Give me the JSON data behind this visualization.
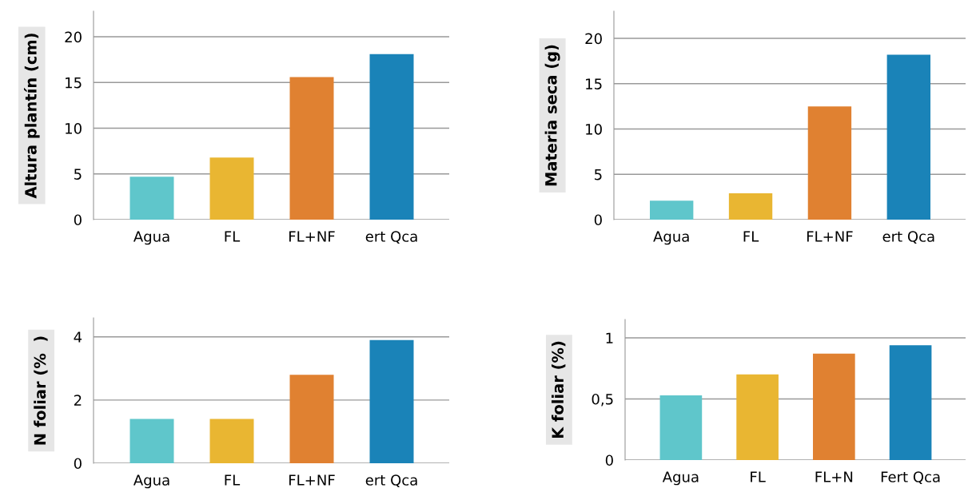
{
  "chart_data": [
    {
      "type": "bar",
      "ylabel": "Altura plantín (cm)",
      "categories": [
        "Agua",
        "FL",
        "FL+NF",
        "ert Qca"
      ],
      "values": [
        4.7,
        6.8,
        15.6,
        18.1
      ],
      "colors": [
        "#5fc6cb",
        "#e9b632",
        "#e08131",
        "#1a83b8"
      ],
      "ylim": [
        0,
        22.8
      ],
      "yticks": [
        0,
        5,
        10,
        15,
        20
      ],
      "grid": "y",
      "legend": false
    },
    {
      "type": "bar",
      "ylabel": "Materia seca (g)",
      "categories": [
        "Agua",
        "FL",
        "FL+NF",
        "ert Qca"
      ],
      "values": [
        2.1,
        2.9,
        12.5,
        18.2
      ],
      "colors": [
        "#5fc6cb",
        "#e9b632",
        "#e08131",
        "#1a83b8"
      ],
      "ylim": [
        0,
        23
      ],
      "yticks": [
        0,
        5,
        10,
        15,
        20
      ],
      "grid": "y",
      "legend": false
    },
    {
      "type": "bar",
      "ylabel": "N foliar (%  )",
      "categories": [
        "Agua",
        "FL",
        "FL+NF",
        "ert Qca"
      ],
      "values": [
        1.4,
        1.4,
        2.8,
        3.9
      ],
      "colors": [
        "#5fc6cb",
        "#e9b632",
        "#e08131",
        "#1a83b8"
      ],
      "ylim": [
        0,
        4.6
      ],
      "yticks": [
        0,
        2,
        4
      ],
      "grid": "y",
      "legend": false
    },
    {
      "type": "bar",
      "ylabel": "K foliar (%)",
      "categories": [
        "Agua",
        "FL",
        "FL+N",
        "Fert Qca"
      ],
      "values": [
        0.53,
        0.7,
        0.87,
        0.94
      ],
      "colors": [
        "#5fc6cb",
        "#e9b632",
        "#e08131",
        "#1a83b8"
      ],
      "ylim": [
        0,
        1.15
      ],
      "yticks": [
        0,
        {
          "value": 0.5,
          "label": "0,5"
        },
        1
      ],
      "grid": "y",
      "legend": false
    }
  ]
}
